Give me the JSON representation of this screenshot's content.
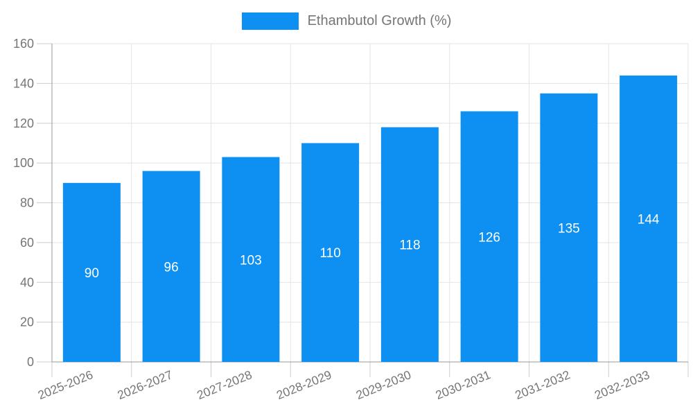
{
  "legend": {
    "label": "Ethambutol Growth (%)"
  },
  "colors": {
    "bar": "#0d90f2",
    "bar_label": "#ffffff",
    "axis_label": "#757575",
    "grid_line": "#e3e3e3",
    "tick_line": "#cccccc",
    "axis_line": "#999999"
  },
  "chart_data": {
    "type": "bar",
    "title": "",
    "categories": [
      "2025-2026",
      "2026-2027",
      "2027-2028",
      "2028-2029",
      "2029-2030",
      "2030-2031",
      "2031-2032",
      "2032-2033"
    ],
    "values": [
      90,
      96,
      103,
      110,
      118,
      126,
      135,
      144
    ],
    "legend": [
      "Ethambutol Growth (%)"
    ],
    "xlabel": "",
    "ylabel": "",
    "ylim": [
      0,
      160
    ],
    "ytick_interval": 20,
    "ytick_labels": [
      "0",
      "20",
      "40",
      "60",
      "80",
      "100",
      "120",
      "140",
      "160"
    ],
    "grid": true,
    "legend_position": "top",
    "bar_value_labels": true,
    "x_label_rotation_deg": -22
  }
}
